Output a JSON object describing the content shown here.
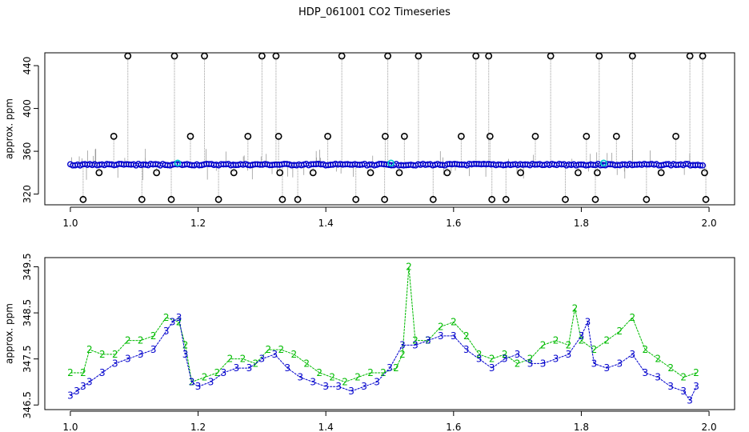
{
  "title": "HDP_061001  CO2 Timeseries",
  "colors": {
    "outlier": "#000000",
    "trace": "#9a9a9a",
    "blue": "#0000cc",
    "green": "#00bb00",
    "cyan": "#00cccc"
  },
  "chart_data": [
    {
      "type": "scatter",
      "title": "",
      "xlabel": "",
      "ylabel": "approx. ppm",
      "xlim": [
        0.96,
        2.04
      ],
      "ylim": [
        310,
        452
      ],
      "xticks": [
        1.0,
        1.2,
        1.4,
        1.6,
        1.8,
        2.0
      ],
      "xtick_labels": [
        "1.0",
        "1.2",
        "1.4",
        "1.6",
        "1.8",
        "2.0"
      ],
      "yticks": [
        320,
        360,
        400,
        440
      ],
      "ytick_labels": [
        "320",
        "360",
        "400",
        "440"
      ],
      "baseline_ppm": 347.5,
      "x_range": [
        1.0,
        1.99
      ],
      "outliers": [
        {
          "x": 1.02,
          "y": 315
        },
        {
          "x": 1.045,
          "y": 340
        },
        {
          "x": 1.068,
          "y": 374
        },
        {
          "x": 1.09,
          "y": 449
        },
        {
          "x": 1.112,
          "y": 315
        },
        {
          "x": 1.135,
          "y": 340
        },
        {
          "x": 1.158,
          "y": 315
        },
        {
          "x": 1.163,
          "y": 449
        },
        {
          "x": 1.188,
          "y": 374
        },
        {
          "x": 1.21,
          "y": 449
        },
        {
          "x": 1.232,
          "y": 315
        },
        {
          "x": 1.256,
          "y": 340
        },
        {
          "x": 1.278,
          "y": 374
        },
        {
          "x": 1.3,
          "y": 449
        },
        {
          "x": 1.322,
          "y": 449
        },
        {
          "x": 1.326,
          "y": 374
        },
        {
          "x": 1.328,
          "y": 340
        },
        {
          "x": 1.332,
          "y": 315
        },
        {
          "x": 1.356,
          "y": 315
        },
        {
          "x": 1.38,
          "y": 340
        },
        {
          "x": 1.403,
          "y": 374
        },
        {
          "x": 1.425,
          "y": 449
        },
        {
          "x": 1.447,
          "y": 315
        },
        {
          "x": 1.47,
          "y": 340
        },
        {
          "x": 1.493,
          "y": 374
        },
        {
          "x": 1.497,
          "y": 449
        },
        {
          "x": 1.492,
          "y": 315
        },
        {
          "x": 1.515,
          "y": 340
        },
        {
          "x": 1.523,
          "y": 374
        },
        {
          "x": 1.545,
          "y": 449
        },
        {
          "x": 1.568,
          "y": 315
        },
        {
          "x": 1.59,
          "y": 340
        },
        {
          "x": 1.612,
          "y": 374
        },
        {
          "x": 1.635,
          "y": 449
        },
        {
          "x": 1.655,
          "y": 449
        },
        {
          "x": 1.657,
          "y": 374
        },
        {
          "x": 1.66,
          "y": 315
        },
        {
          "x": 1.682,
          "y": 315
        },
        {
          "x": 1.705,
          "y": 340
        },
        {
          "x": 1.728,
          "y": 374
        },
        {
          "x": 1.752,
          "y": 449
        },
        {
          "x": 1.775,
          "y": 315
        },
        {
          "x": 1.795,
          "y": 340
        },
        {
          "x": 1.808,
          "y": 374
        },
        {
          "x": 1.828,
          "y": 449
        },
        {
          "x": 1.822,
          "y": 315
        },
        {
          "x": 1.825,
          "y": 340
        },
        {
          "x": 1.855,
          "y": 374
        },
        {
          "x": 1.88,
          "y": 449
        },
        {
          "x": 1.902,
          "y": 315
        },
        {
          "x": 1.925,
          "y": 340
        },
        {
          "x": 1.948,
          "y": 374
        },
        {
          "x": 1.97,
          "y": 449
        },
        {
          "x": 1.99,
          "y": 449
        },
        {
          "x": 1.993,
          "y": 340
        },
        {
          "x": 1.995,
          "y": 315
        }
      ],
      "cyan_markers": [
        {
          "x": 1.168,
          "y": 349
        },
        {
          "x": 1.502,
          "y": 349
        },
        {
          "x": 1.835,
          "y": 349
        }
      ]
    },
    {
      "type": "scatter",
      "title": "",
      "xlabel": "",
      "ylabel": "approx. ppm",
      "xlim": [
        0.96,
        2.04
      ],
      "ylim": [
        346.4,
        349.7
      ],
      "xticks": [
        1.0,
        1.2,
        1.4,
        1.6,
        1.8,
        2.0
      ],
      "xtick_labels": [
        "1.0",
        "1.2",
        "1.4",
        "1.6",
        "1.8",
        "2.0"
      ],
      "yticks": [
        346.5,
        347.5,
        348.5,
        349.5
      ],
      "ytick_labels": [
        "346.5",
        "347.5",
        "348.5",
        "349.5"
      ],
      "series": [
        {
          "marker": "2",
          "color": "green",
          "x": [
            1.0,
            1.02,
            1.03,
            1.05,
            1.07,
            1.09,
            1.11,
            1.13,
            1.15,
            1.17,
            1.18,
            1.19,
            1.21,
            1.23,
            1.25,
            1.27,
            1.29,
            1.31,
            1.33,
            1.35,
            1.37,
            1.39,
            1.41,
            1.43,
            1.45,
            1.47,
            1.49,
            1.51,
            1.52,
            1.53,
            1.54,
            1.56,
            1.58,
            1.6,
            1.62,
            1.64,
            1.66,
            1.68,
            1.7,
            1.72,
            1.74,
            1.76,
            1.78,
            1.79,
            1.8,
            1.82,
            1.84,
            1.86,
            1.88,
            1.9,
            1.92,
            1.94,
            1.96,
            1.98
          ],
          "y": [
            347.2,
            347.2,
            347.7,
            347.6,
            347.6,
            347.9,
            347.9,
            348.0,
            348.4,
            348.3,
            347.8,
            347.0,
            347.1,
            347.2,
            347.5,
            347.5,
            347.4,
            347.7,
            347.7,
            347.6,
            347.4,
            347.2,
            347.1,
            347.0,
            347.1,
            347.2,
            347.2,
            347.3,
            347.6,
            349.5,
            347.9,
            347.9,
            348.2,
            348.3,
            348.0,
            347.6,
            347.5,
            347.6,
            347.4,
            347.5,
            347.8,
            347.9,
            347.8,
            348.6,
            347.9,
            347.7,
            347.9,
            348.1,
            348.4,
            347.7,
            347.5,
            347.3,
            347.1,
            347.2
          ]
        },
        {
          "marker": "3",
          "color": "blue",
          "x": [
            1.0,
            1.01,
            1.02,
            1.03,
            1.05,
            1.07,
            1.09,
            1.11,
            1.13,
            1.15,
            1.16,
            1.17,
            1.18,
            1.19,
            1.2,
            1.22,
            1.24,
            1.26,
            1.28,
            1.3,
            1.32,
            1.34,
            1.36,
            1.38,
            1.4,
            1.42,
            1.44,
            1.46,
            1.48,
            1.5,
            1.52,
            1.54,
            1.56,
            1.58,
            1.6,
            1.62,
            1.64,
            1.66,
            1.68,
            1.7,
            1.72,
            1.74,
            1.76,
            1.78,
            1.8,
            1.81,
            1.82,
            1.84,
            1.86,
            1.88,
            1.9,
            1.92,
            1.94,
            1.96,
            1.97,
            1.98
          ],
          "y": [
            346.7,
            346.8,
            346.9,
            347.0,
            347.2,
            347.4,
            347.5,
            347.6,
            347.7,
            348.1,
            348.3,
            348.4,
            347.6,
            347.0,
            346.9,
            347.0,
            347.2,
            347.3,
            347.3,
            347.5,
            347.6,
            347.3,
            347.1,
            347.0,
            346.9,
            346.9,
            346.8,
            346.9,
            347.0,
            347.3,
            347.8,
            347.8,
            347.9,
            348.0,
            348.0,
            347.7,
            347.5,
            347.3,
            347.5,
            347.6,
            347.4,
            347.4,
            347.5,
            347.6,
            348.0,
            348.3,
            347.4,
            347.3,
            347.4,
            347.6,
            347.2,
            347.1,
            346.9,
            346.8,
            346.6,
            346.9
          ]
        }
      ]
    }
  ]
}
